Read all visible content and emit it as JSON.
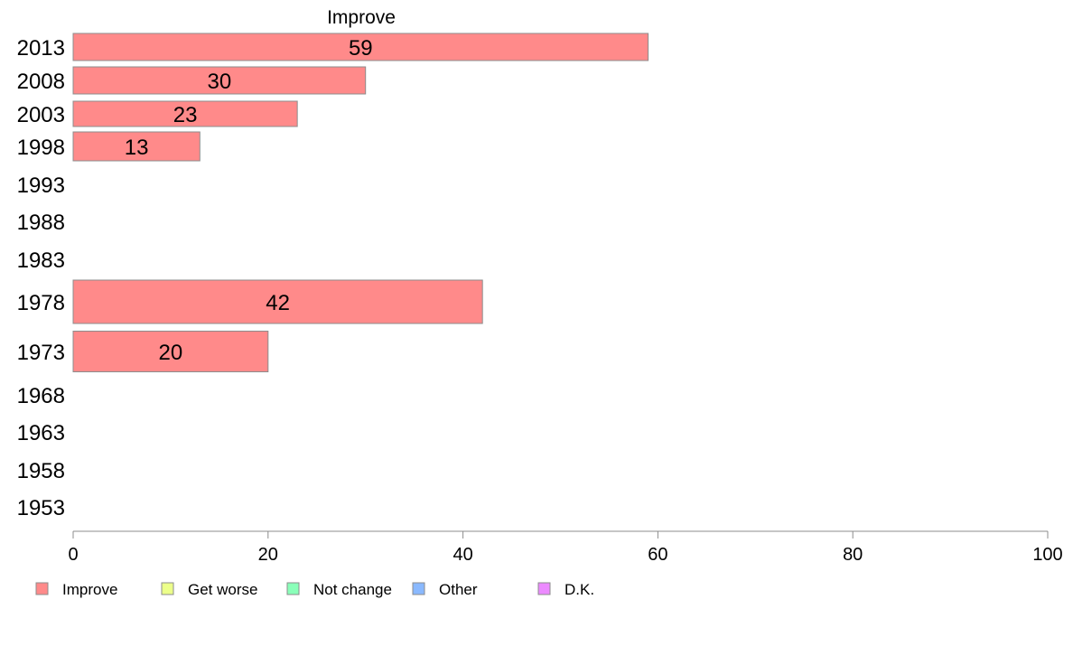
{
  "chart_data": {
    "type": "bar",
    "orientation": "horizontal",
    "title": "Improve",
    "categories": [
      "2013",
      "2008",
      "2003",
      "1998",
      "1993",
      "1988",
      "1983",
      "1978",
      "1973",
      "1968",
      "1963",
      "1958",
      "1953"
    ],
    "series": [
      {
        "name": "Improve",
        "values": [
          59,
          30,
          23,
          13,
          null,
          null,
          null,
          42,
          20,
          null,
          null,
          null,
          null
        ],
        "color": "#ff8a8a"
      }
    ],
    "data_labels": [
      "59",
      "30",
      "23",
      "13",
      "",
      "",
      "",
      "42",
      "20",
      "",
      "",
      "",
      ""
    ],
    "xlim": [
      0,
      100
    ],
    "xticks": [
      "0",
      "20",
      "40",
      "60",
      "80",
      "100"
    ],
    "grid": false,
    "legend": {
      "placement": "bottom-left",
      "items": [
        {
          "label": "Improve",
          "color": "#ff8a8a"
        },
        {
          "label": "Get worse",
          "color": "#ecff8a"
        },
        {
          "label": "Not change",
          "color": "#8affb9"
        },
        {
          "label": "Other",
          "color": "#8ab9ff"
        },
        {
          "label": "D.K.",
          "color": "#ec8aff"
        }
      ]
    }
  }
}
